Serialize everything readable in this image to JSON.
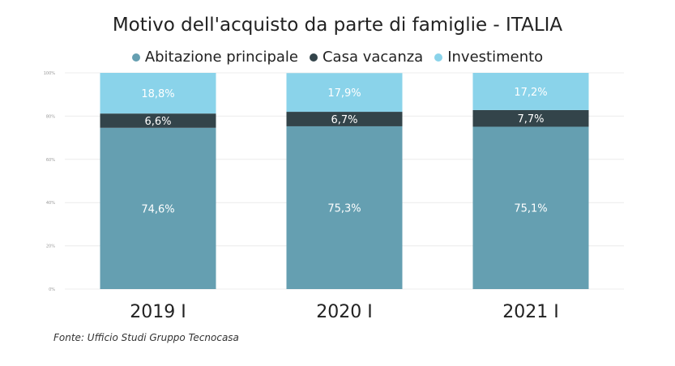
{
  "chart_data": {
    "type": "bar",
    "stacked": true,
    "title": "Motivo dell'acquisto da parte di famiglie - ITALIA",
    "categories": [
      "2019 I",
      "2020 I",
      "2021 I"
    ],
    "series": [
      {
        "name": "Abitazione principale",
        "color": "#659fb1",
        "values": [
          74.6,
          75.3,
          75.1
        ],
        "labels": [
          "74,6%",
          "75,3%",
          "75,1%"
        ]
      },
      {
        "name": "Casa vacanza",
        "color": "#33444a",
        "values": [
          6.6,
          6.7,
          7.7
        ],
        "labels": [
          "6,6%",
          "6,7%",
          "7,7%"
        ]
      },
      {
        "name": "Investimento",
        "color": "#8ad3ea",
        "values": [
          18.8,
          17.9,
          17.2
        ],
        "labels": [
          "18,8%",
          "17,9%",
          "17,2%"
        ]
      }
    ],
    "y_ticks": [
      "0%",
      "20%",
      "40%",
      "60%",
      "80%",
      "100%"
    ],
    "ylim": [
      0,
      100
    ],
    "grid": true,
    "legend_position": "top"
  },
  "source": "Fonte: Ufficio Studi Gruppo Tecnocasa"
}
